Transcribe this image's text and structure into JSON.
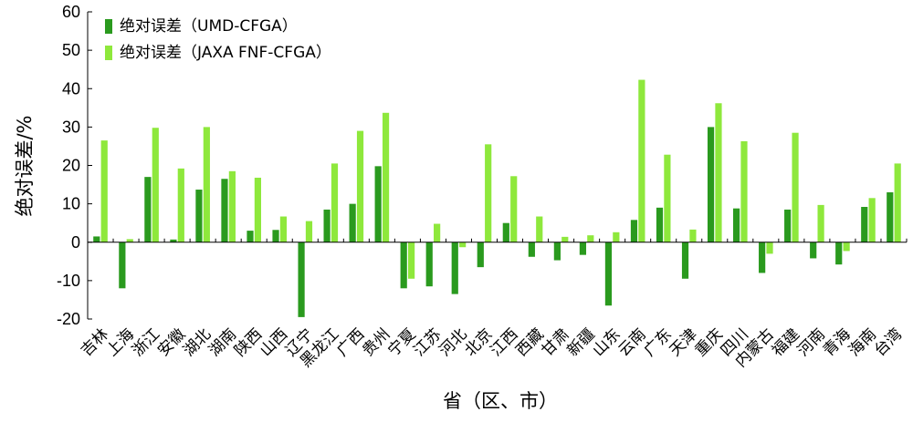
{
  "chart_data": {
    "type": "bar",
    "xlabel": "省（区、市）",
    "ylabel": "绝对误差/%",
    "ylim": [
      -20,
      60
    ],
    "yticks": [
      -20,
      -10,
      0,
      10,
      20,
      30,
      40,
      50,
      60
    ],
    "grid": false,
    "legend_position": "top-left",
    "categories": [
      "吉林",
      "上海",
      "浙江",
      "安徽",
      "湖北",
      "湖南",
      "陕西",
      "山西",
      "辽宁",
      "黑龙江",
      "广西",
      "贵州",
      "宁夏",
      "江苏",
      "河北",
      "北京",
      "江西",
      "西藏",
      "甘肃",
      "新疆",
      "山东",
      "云南",
      "广东",
      "天津",
      "重庆",
      "四川",
      "内蒙古",
      "福建",
      "河南",
      "青海",
      "海南",
      "台湾"
    ],
    "series": [
      {
        "name": "绝对误差（UMD-CFGA）",
        "color": "#2a9a1e",
        "values": [
          1.5,
          -12,
          17,
          0.7,
          13.7,
          16.5,
          3,
          3.2,
          -19.5,
          8.5,
          10,
          19.8,
          -12,
          -11.5,
          -13.5,
          -6.5,
          5,
          -3.8,
          -4.7,
          -3.3,
          -16.5,
          5.8,
          9,
          -9.5,
          30,
          8.8,
          -8,
          8.5,
          -4.2,
          -5.8,
          9.2,
          13
        ]
      },
      {
        "name": "绝对误差（JAXA FNF-CFGA）",
        "color": "#8ee83c",
        "values": [
          26.5,
          0.8,
          29.8,
          19.2,
          30,
          18.5,
          16.8,
          6.7,
          5.5,
          20.5,
          29,
          33.7,
          -9.5,
          4.8,
          -1.3,
          25.5,
          17.2,
          6.7,
          1.4,
          1.8,
          2.6,
          42.3,
          22.8,
          3.3,
          36.2,
          26.3,
          -3,
          28.5,
          9.7,
          -2.3,
          11.5,
          20.5
        ]
      }
    ]
  }
}
